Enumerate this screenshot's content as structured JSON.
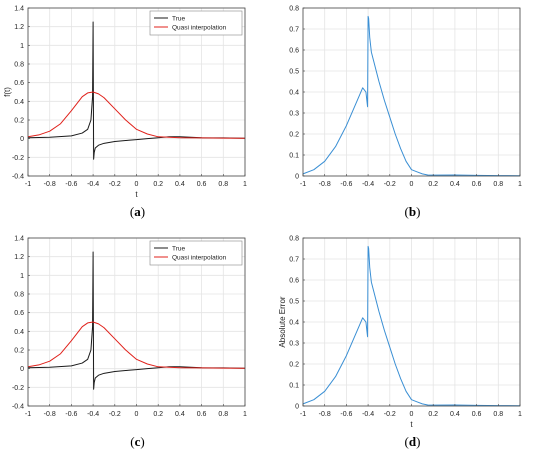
{
  "panels": [
    {
      "id": "a",
      "label": "a"
    },
    {
      "id": "b",
      "label": "b"
    },
    {
      "id": "c",
      "label": "c"
    },
    {
      "id": "d",
      "label": "d"
    }
  ],
  "colors": {
    "true_series": "#1a1a1a",
    "quasi_series": "#e0211b",
    "error_series": "#3a8fd4",
    "grid": "#e4e4e4",
    "axis": "#444444"
  },
  "chart_data": [
    {
      "type": "line",
      "title": "",
      "xlabel": "t",
      "ylabel": "f(t)",
      "xlim": [
        -1,
        1
      ],
      "ylim": [
        -0.4,
        1.4
      ],
      "grid": true,
      "legend_position": "top-right",
      "xticks": [
        "-1",
        "-0.8",
        "-0.6",
        "-0.4",
        "-0.2",
        "0",
        "0.2",
        "0.4",
        "0.6",
        "0.8",
        "1"
      ],
      "yticks": [
        "-0.4",
        "-0.2",
        "0",
        "0.2",
        "0.4",
        "0.6",
        "0.8",
        "1",
        "1.2",
        "1.4"
      ],
      "series": [
        {
          "name": "True",
          "color": "#1a1a1a",
          "x": [
            -1,
            -0.8,
            -0.6,
            -0.5,
            -0.45,
            -0.42,
            -0.405,
            -0.4,
            -0.395,
            -0.39,
            -0.38,
            -0.35,
            -0.3,
            -0.2,
            -0.1,
            0,
            0.1,
            0.2,
            0.3,
            0.4,
            0.6,
            0.8,
            1
          ],
          "y": [
            0.01,
            0.015,
            0.03,
            0.06,
            0.1,
            0.2,
            0.45,
            1.25,
            -0.22,
            -0.15,
            -0.1,
            -0.07,
            -0.05,
            -0.03,
            -0.02,
            -0.01,
            0,
            0.01,
            0.02,
            0.02,
            0.01,
            0.008,
            0.005
          ]
        },
        {
          "name": "Quasi interpolation",
          "color": "#e0211b",
          "x": [
            -1,
            -0.9,
            -0.8,
            -0.7,
            -0.6,
            -0.5,
            -0.45,
            -0.4,
            -0.35,
            -0.3,
            -0.2,
            -0.1,
            0,
            0.1,
            0.2,
            0.3,
            0.4,
            0.6,
            0.8,
            1
          ],
          "y": [
            0.02,
            0.04,
            0.08,
            0.16,
            0.3,
            0.45,
            0.49,
            0.5,
            0.48,
            0.44,
            0.32,
            0.2,
            0.1,
            0.05,
            0.02,
            0.015,
            0.01,
            0.008,
            0.006,
            0.005
          ]
        }
      ]
    },
    {
      "type": "line",
      "title": "",
      "xlabel": "",
      "ylabel": "",
      "xlim": [
        -1,
        1
      ],
      "ylim": [
        0,
        0.8
      ],
      "grid": true,
      "xticks": [
        "-1",
        "-0.8",
        "-0.6",
        "-0.4",
        "-0.2",
        "0",
        "0.2",
        "0.4",
        "0.6",
        "0.8",
        "1"
      ],
      "yticks": [
        "0",
        "0.1",
        "0.2",
        "0.3",
        "0.4",
        "0.5",
        "0.6",
        "0.7",
        "0.8"
      ],
      "series": [
        {
          "name": "",
          "color": "#3a8fd4",
          "x": [
            -1,
            -0.9,
            -0.8,
            -0.7,
            -0.6,
            -0.5,
            -0.45,
            -0.42,
            -0.405,
            -0.4,
            -0.395,
            -0.385,
            -0.37,
            -0.35,
            -0.3,
            -0.25,
            -0.2,
            -0.15,
            -0.1,
            -0.05,
            0,
            0.05,
            0.1,
            0.15,
            0.2,
            0.4,
            0.6,
            0.8,
            1
          ],
          "y": [
            0.01,
            0.03,
            0.07,
            0.14,
            0.24,
            0.36,
            0.42,
            0.4,
            0.33,
            0.76,
            0.75,
            0.66,
            0.59,
            0.55,
            0.45,
            0.36,
            0.28,
            0.2,
            0.13,
            0.07,
            0.03,
            0.02,
            0.01,
            0.005,
            0.004,
            0.005,
            0.003,
            0.002,
            0.001
          ]
        }
      ]
    },
    {
      "type": "line",
      "title": "",
      "xlabel": "",
      "ylabel": "",
      "xlim": [
        -1,
        1
      ],
      "ylim": [
        -0.4,
        1.4
      ],
      "grid": true,
      "legend_position": "top-right",
      "xticks": [
        "-1",
        "-0.8",
        "-0.6",
        "-0.4",
        "-0.2",
        "0",
        "0.2",
        "0.4",
        "0.6",
        "0.8",
        "1"
      ],
      "yticks": [
        "-0.4",
        "-0.2",
        "0",
        "0.2",
        "0.4",
        "0.6",
        "0.8",
        "1",
        "1.2",
        "1.4"
      ],
      "series": [
        {
          "name": "True",
          "color": "#1a1a1a",
          "x": [
            -1,
            -0.8,
            -0.6,
            -0.5,
            -0.45,
            -0.42,
            -0.405,
            -0.4,
            -0.395,
            -0.39,
            -0.38,
            -0.35,
            -0.3,
            -0.2,
            -0.1,
            0,
            0.1,
            0.2,
            0.3,
            0.4,
            0.6,
            0.8,
            1
          ],
          "y": [
            0.01,
            0.015,
            0.03,
            0.06,
            0.1,
            0.2,
            0.45,
            1.25,
            -0.22,
            -0.15,
            -0.1,
            -0.07,
            -0.05,
            -0.03,
            -0.02,
            -0.01,
            0,
            0.01,
            0.02,
            0.02,
            0.01,
            0.008,
            0.005
          ]
        },
        {
          "name": "Quasi interpolation",
          "color": "#e0211b",
          "x": [
            -1,
            -0.9,
            -0.8,
            -0.7,
            -0.6,
            -0.5,
            -0.45,
            -0.4,
            -0.35,
            -0.3,
            -0.2,
            -0.1,
            0,
            0.1,
            0.2,
            0.3,
            0.4,
            0.6,
            0.8,
            1
          ],
          "y": [
            0.02,
            0.04,
            0.08,
            0.16,
            0.3,
            0.45,
            0.49,
            0.5,
            0.48,
            0.44,
            0.32,
            0.2,
            0.1,
            0.05,
            0.02,
            0.015,
            0.01,
            0.008,
            0.006,
            0.005
          ]
        }
      ]
    },
    {
      "type": "line",
      "title": "",
      "xlabel": "t",
      "ylabel": "Absolute Error",
      "xlim": [
        -1,
        1
      ],
      "ylim": [
        0,
        0.8
      ],
      "grid": true,
      "xticks": [
        "-1",
        "-0.8",
        "-0.6",
        "-0.4",
        "-0.2",
        "0",
        "0.2",
        "0.4",
        "0.6",
        "0.8",
        "1"
      ],
      "yticks": [
        "0",
        "0.1",
        "0.2",
        "0.3",
        "0.4",
        "0.5",
        "0.6",
        "0.7",
        "0.8"
      ],
      "series": [
        {
          "name": "",
          "color": "#3a8fd4",
          "x": [
            -1,
            -0.9,
            -0.8,
            -0.7,
            -0.6,
            -0.5,
            -0.45,
            -0.42,
            -0.405,
            -0.4,
            -0.395,
            -0.385,
            -0.37,
            -0.35,
            -0.3,
            -0.25,
            -0.2,
            -0.15,
            -0.1,
            -0.05,
            0,
            0.05,
            0.1,
            0.15,
            0.2,
            0.4,
            0.6,
            0.8,
            1
          ],
          "y": [
            0.01,
            0.03,
            0.07,
            0.14,
            0.24,
            0.36,
            0.42,
            0.4,
            0.33,
            0.76,
            0.75,
            0.66,
            0.59,
            0.55,
            0.45,
            0.36,
            0.28,
            0.2,
            0.13,
            0.07,
            0.03,
            0.02,
            0.01,
            0.005,
            0.004,
            0.005,
            0.003,
            0.002,
            0.001
          ]
        }
      ]
    }
  ]
}
